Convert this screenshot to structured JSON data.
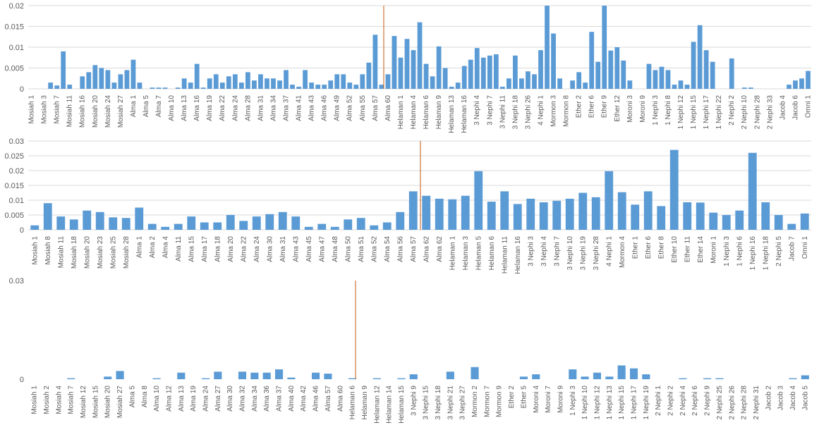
{
  "chart_data": [
    {
      "type": "bar",
      "color": "#5b9bd5",
      "grid": true,
      "ylim": [
        0,
        0.02
      ],
      "yticks": [
        0,
        0.005,
        0.01,
        0.015,
        0.02
      ],
      "categories": [
        "Mosiah 1",
        null,
        "Mosiah 3",
        null,
        "Mosiah 7",
        null,
        "Mosiah 11",
        null,
        "Mosiah 16",
        null,
        "Mosiah 20",
        null,
        "Mosiah 24",
        null,
        "Mosiah 27",
        null,
        "Alma 1",
        null,
        "Alma 5",
        null,
        "Alma 7",
        null,
        "Alma 10",
        null,
        "Alma 13",
        null,
        "Alma 16",
        null,
        "Alma 19",
        null,
        "Alma 22",
        null,
        "Alma 24",
        null,
        "Alma 28",
        null,
        "Alma 31",
        null,
        "Alma 34",
        null,
        "Alma 37",
        null,
        "Alma 41",
        null,
        "Alma 43",
        null,
        "Alma 46",
        null,
        "Alma 49",
        null,
        "Alma 52",
        null,
        "Alma 55",
        null,
        "Alma 57",
        null,
        "Alma 60",
        null,
        "Helaman 1",
        null,
        "Helaman 4",
        null,
        "Helaman 6",
        null,
        "Helaman 9",
        null,
        "Helaman 13",
        null,
        "Helaman 16",
        null,
        "3 Nephi 4",
        null,
        "3 Nephi 7",
        null,
        "3 Nephi 11",
        null,
        "3 Nephi 18",
        null,
        "3 Nephi 26",
        null,
        "4 Nephi 1",
        null,
        "Mormon 3",
        null,
        "Mormon 8",
        null,
        "Ether 2",
        null,
        "Ether 6",
        null,
        "Ether 9",
        null,
        "Ether 12",
        null,
        "Moroni 3",
        null,
        "Moroni 9",
        null,
        "1 Nephi 3",
        null,
        "1 Nephi 8",
        null,
        "1 Nephi 12",
        null,
        "1 Nephi 15",
        null,
        "1 Nephi 17",
        null,
        "1 Nephi 22",
        null,
        "2 Nephi 2",
        null,
        "2 Nephi 10",
        null,
        "2 Nephi 28",
        null,
        "2 Nephi 33",
        null,
        "Jacob 4",
        null,
        "Jacob 6",
        null,
        "Omni 1"
      ],
      "values": [
        0,
        0,
        0,
        0.0015,
        0.0008,
        0.009,
        0.001,
        0,
        0.003,
        0.004,
        0.0057,
        0.005,
        0.0045,
        0.0015,
        0.0035,
        0.0045,
        0.007,
        0.0015,
        0,
        0.0003,
        0.0003,
        0.0003,
        0,
        0.0003,
        0.0025,
        0.0015,
        0.006,
        0.0003,
        0.0025,
        0.0035,
        0.0015,
        0.003,
        0.0035,
        0.0015,
        0.004,
        0.002,
        0.0035,
        0.0025,
        0.0025,
        0.002,
        0.0045,
        0.001,
        0.0005,
        0.0045,
        0.0015,
        0.001,
        0.001,
        0.002,
        0.0035,
        0.0035,
        0.0015,
        0.001,
        0.0035,
        0.0063,
        0.013,
        0.001,
        0.0035,
        0.0127,
        0.0075,
        0.012,
        0.0093,
        0.016,
        0.006,
        0.003,
        0.0102,
        0.005,
        0.0005,
        0.0015,
        0.0055,
        0.007,
        0.0098,
        0.0075,
        0.008,
        0.0083,
        0.0005,
        0.0025,
        0.008,
        0.0025,
        0.0042,
        0.0035,
        0.0093,
        0.02,
        0.0133,
        0.0025,
        0,
        0.002,
        0.004,
        0.0015,
        0.0137,
        0.0065,
        0.02,
        0.0092,
        0.01,
        0.0068,
        0.002,
        0,
        0,
        0.006,
        0.0045,
        0.0053,
        0.0045,
        0.001,
        0.002,
        0.001,
        0.0113,
        0.0153,
        0.0093,
        0.0065,
        0,
        0,
        0.0073,
        0,
        0.0003,
        0.0003,
        0,
        0,
        0,
        0,
        0,
        0.001,
        0.002,
        0.0025,
        0.0043
      ]
    },
    {
      "type": "bar",
      "color": "#5b9bd5",
      "grid": true,
      "ylim": [
        0,
        0.03
      ],
      "yticks": [
        0,
        0.005,
        0.01,
        0.015,
        0.02,
        0.025,
        0.03
      ],
      "categories": [
        "Mosiah 1",
        "Mosiah 8",
        "Mosiah 11",
        "Mosiah 18",
        "Mosiah 20",
        "Mosiah 23",
        "Mosiah 25",
        "Mosiah 28",
        "Alma 1",
        "Alma 2",
        "Alma 4",
        "Alma 11",
        "Alma 15",
        "Alma 17",
        "Alma 18",
        "Alma 20",
        "Alma 22",
        "Alma 24",
        "Alma 30",
        "Alma 31",
        "Alma 43",
        "Alma 45",
        "Alma 47",
        "Alma 48",
        "Alma 50",
        "Alma 51",
        "Alma 52",
        "Alma 54",
        "Alma 56",
        "Alma 57",
        "Alma 62",
        "Alma 62",
        "Helaman 1",
        "Helaman 3",
        "Helaman 5",
        "Helaman 6",
        "Helaman 11",
        "Helaman 16",
        "3 Nephi 3",
        "3 Nephi 4",
        "3 Nephi 7",
        "3 Nephi 10",
        "3 Nephi 19",
        "3 Nephi 28",
        "4 Nephi 1",
        "Mormon 4",
        "Ether 1",
        "Ether 6",
        "Ether 8",
        "Ether 10",
        "Ether 11",
        "Ether 14",
        "Moroni 1",
        "1 Nephi 3",
        "1 Nephi 6",
        "1 Nephi 16",
        "1 Nephi 18",
        "2 Nephi 5",
        "Jacob 7",
        "Omni 1"
      ],
      "values": [
        0.0015,
        0.009,
        0.0045,
        0.0035,
        0.0065,
        0.006,
        0.0042,
        0.004,
        0.0075,
        0.002,
        0.001,
        0.002,
        0.0045,
        0.0025,
        0.0025,
        0.005,
        0.003,
        0.0045,
        0.0053,
        0.006,
        0.0045,
        0.001,
        0.002,
        0.001,
        0.0035,
        0.004,
        0.0015,
        0.0025,
        0.006,
        0.013,
        0.0115,
        0.0105,
        0.0103,
        0.0115,
        0.0198,
        0.0095,
        0.013,
        0.0087,
        0.0105,
        0.0093,
        0.0098,
        0.0105,
        0.0125,
        0.011,
        0.0198,
        0.0127,
        0.0085,
        0.013,
        0.008,
        0.027,
        0.0093,
        0.0092,
        0.0058,
        0.005,
        0.0065,
        0.026,
        0.0093,
        0.005,
        0.002,
        0.0055
      ]
    },
    {
      "type": "bar",
      "color": "#5b9bd5",
      "grid": false,
      "ylim": [
        0,
        0.03
      ],
      "yticks": [
        0,
        0.03
      ],
      "categories": [
        "Mosiah 1",
        "Mosiah 2",
        "Mosiah 4",
        "Mosiah 7",
        "Mosiah 12",
        "Mosiah 15",
        "Mosiah 20",
        "Mosiah 27",
        "Alma 5",
        "Alma 8",
        "Alma 10",
        "Alma 12",
        "Alma 13",
        "Alma 19",
        "Alma 24",
        "Alma 27",
        "Alma 30",
        "Alma 32",
        "Alma 34",
        "Alma 36",
        "Alma 37",
        "Alma 40",
        "Alma 42",
        "Alma 46",
        "Alma 57",
        "Alma 60",
        "Helaman 6",
        "Helaman 9",
        "Helaman 12",
        "Helaman 14",
        "Helaman 15",
        "3 Nephi 9",
        "3 Nephi 15",
        "3 Nephi 18",
        "3 Nephi 21",
        "3 Nephi 27",
        "Mormon 2",
        "Mormon 7",
        "Mormon 9",
        "Ether 2",
        "Ether 5",
        "Moroni 4",
        "Moroni 7",
        "Moroni 9",
        "1 Nephi 3",
        "1 Nephi 10",
        "1 Nephi 12",
        "1 Nephi 13",
        "1 Nephi 15",
        "1 Nephi 17",
        "1 Nephi 19",
        "2 Nephi 1",
        "2 Nephi 2",
        "2 Nephi 4",
        "2 Nephi 6",
        "2 Nephi 9",
        "2 Nephi 25",
        "2 Nephi 26",
        "2 Nephi 28",
        "2 Nephi 31",
        "Jacob 2",
        "Jacob 3",
        "Jacob 4",
        "Jacob 5"
      ],
      "values": [
        0,
        0,
        0,
        0.0003,
        0,
        0,
        0.0008,
        0.0025,
        0,
        0,
        0.0003,
        0,
        0.002,
        0,
        0.0003,
        0.0023,
        0,
        0.0023,
        0.002,
        0.002,
        0.003,
        0.0005,
        0,
        0.002,
        0.0017,
        0,
        0.0003,
        0,
        0.0003,
        0,
        0.0003,
        0.0015,
        0,
        0,
        0.0023,
        0,
        0.0037,
        0,
        0,
        0,
        0.0008,
        0.0015,
        0,
        0,
        0.003,
        0.0008,
        0.002,
        0.0008,
        0.0042,
        0.0033,
        0.0015,
        0,
        0,
        0.0003,
        0,
        0.0003,
        0.0003,
        0,
        0,
        0,
        0,
        0,
        0.0003,
        0.0012
      ]
    }
  ]
}
